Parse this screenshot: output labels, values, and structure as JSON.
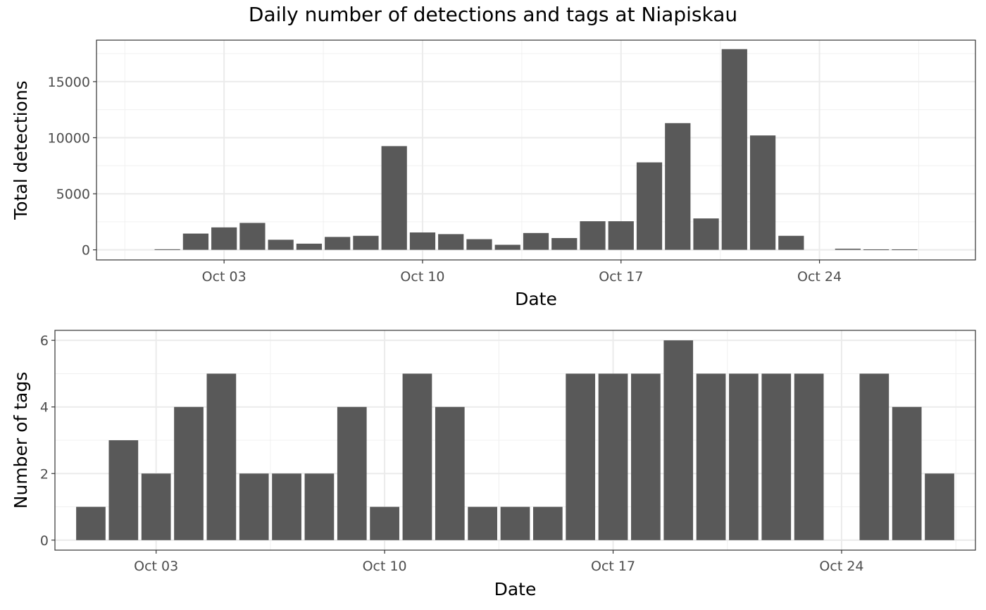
{
  "title": "Daily number of detections and tags at Niapiskau",
  "chart_data": [
    {
      "type": "bar",
      "xlabel": "Date",
      "ylabel": "Total detections",
      "x": [
        "2023-10-01",
        "2023-10-02",
        "2023-10-03",
        "2023-10-04",
        "2023-10-05",
        "2023-10-06",
        "2023-10-07",
        "2023-10-08",
        "2023-10-09",
        "2023-10-10",
        "2023-10-11",
        "2023-10-12",
        "2023-10-13",
        "2023-10-14",
        "2023-10-15",
        "2023-10-16",
        "2023-10-17",
        "2023-10-18",
        "2023-10-19",
        "2023-10-20",
        "2023-10-21",
        "2023-10-22",
        "2023-10-23",
        "2023-10-25",
        "2023-10-26",
        "2023-10-27"
      ],
      "values": [
        50,
        1450,
        2000,
        2400,
        900,
        550,
        1150,
        1250,
        9250,
        1550,
        1400,
        950,
        450,
        1500,
        1050,
        2550,
        2550,
        7800,
        11300,
        2800,
        17900,
        10200,
        1250,
        100,
        40,
        40
      ],
      "xticks": [
        "Oct 03",
        "Oct 10",
        "Oct 17",
        "Oct 24"
      ],
      "xtick_dates": [
        "2023-10-03",
        "2023-10-10",
        "2023-10-17",
        "2023-10-24"
      ],
      "yticks": [
        0,
        5000,
        10000,
        15000
      ],
      "xlim": [
        "2023-09-28",
        "2023-10-29"
      ],
      "ylim": [
        -900,
        18700
      ],
      "grid": true,
      "bar_color": "#595959"
    },
    {
      "type": "bar",
      "xlabel": "Date",
      "ylabel": "Number of tags",
      "x": [
        "2023-10-01",
        "2023-10-02",
        "2023-10-03",
        "2023-10-04",
        "2023-10-05",
        "2023-10-06",
        "2023-10-07",
        "2023-10-08",
        "2023-10-09",
        "2023-10-10",
        "2023-10-11",
        "2023-10-12",
        "2023-10-13",
        "2023-10-14",
        "2023-10-15",
        "2023-10-16",
        "2023-10-17",
        "2023-10-18",
        "2023-10-19",
        "2023-10-20",
        "2023-10-21",
        "2023-10-22",
        "2023-10-23",
        "2023-10-25",
        "2023-10-26",
        "2023-10-27"
      ],
      "values": [
        1,
        3,
        2,
        4,
        5,
        2,
        2,
        2,
        4,
        1,
        5,
        4,
        1,
        1,
        1,
        5,
        5,
        5,
        6,
        5,
        5,
        5,
        5,
        5,
        4,
        2
      ],
      "xticks": [
        "Oct 03",
        "Oct 10",
        "Oct 17",
        "Oct 24"
      ],
      "xtick_dates": [
        "2023-10-03",
        "2023-10-10",
        "2023-10-17",
        "2023-10-24"
      ],
      "yticks": [
        0,
        2,
        4,
        6
      ],
      "xlim": [
        "2023-09-29.9",
        "2023-10-28.1"
      ],
      "ylim": [
        -0.3,
        6.3
      ],
      "grid": true,
      "bar_color": "#595959"
    }
  ]
}
